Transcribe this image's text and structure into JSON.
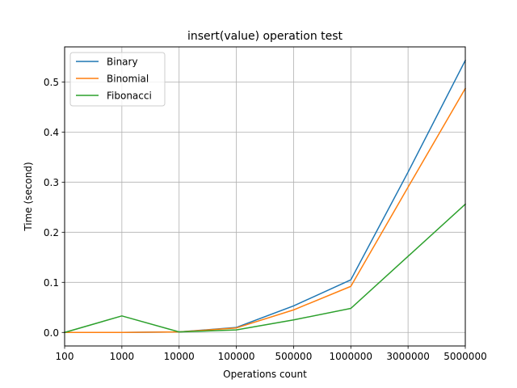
{
  "chart_data": {
    "type": "line",
    "title": "insert(value) operation test",
    "xlabel": "Operations count",
    "ylabel": "Time (second)",
    "categories": [
      "100",
      "1000",
      "10000",
      "100000",
      "500000",
      "1000000",
      "3000000",
      "5000000"
    ],
    "ylim": [
      -0.027,
      0.57
    ],
    "yticks": [
      0.0,
      0.1,
      0.2,
      0.3,
      0.4,
      0.5
    ],
    "ytick_labels": [
      "0.0",
      "0.1",
      "0.2",
      "0.3",
      "0.4",
      "0.5"
    ],
    "grid": true,
    "legend_position": "upper-left",
    "series": [
      {
        "name": "Binary",
        "color": "#1f77b4",
        "values": [
          0.0,
          0.0,
          0.001,
          0.01,
          0.053,
          0.105,
          0.32,
          0.543
        ]
      },
      {
        "name": "Binomial",
        "color": "#ff7f0e",
        "values": [
          0.0,
          0.0,
          0.001,
          0.009,
          0.045,
          0.092,
          0.29,
          0.487
        ]
      },
      {
        "name": "Fibonacci",
        "color": "#2ca02c",
        "values": [
          0.0,
          0.033,
          0.001,
          0.005,
          0.025,
          0.048,
          0.152,
          0.256
        ]
      }
    ]
  }
}
